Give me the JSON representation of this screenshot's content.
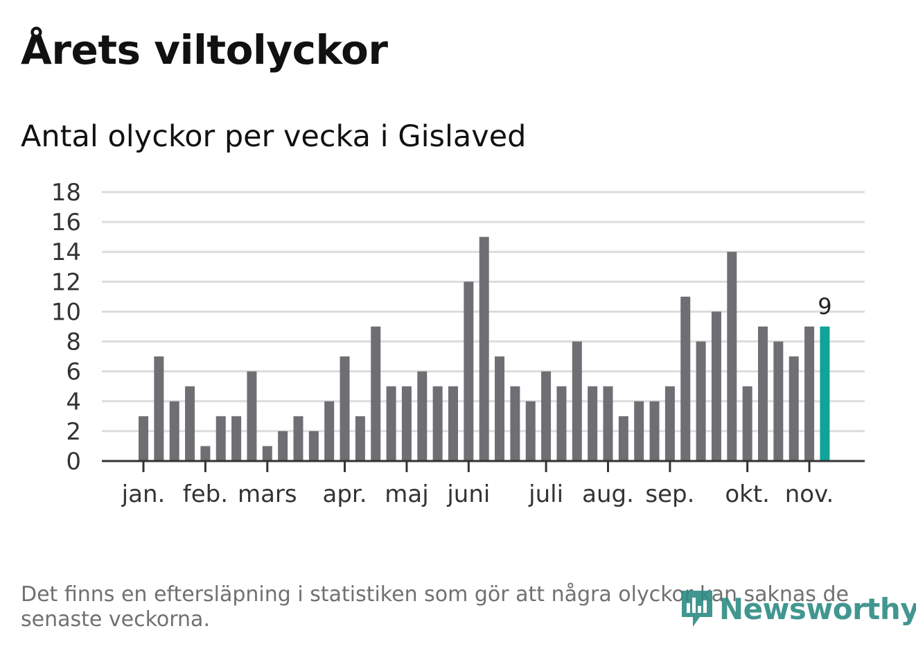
{
  "title": "Årets viltolyckor",
  "subtitle": "Antal olyckor per vecka i Gislaved",
  "footnote": "Det finns en eftersläpning i statistiken som gör att några olyckor kan saknas de senaste veckorna.",
  "logo": {
    "name": "Newsworthy"
  },
  "colors": {
    "bar": "#6f6e73",
    "highlight": "#0fa39a",
    "grid": "#dcdcdc",
    "axis": "#333333"
  },
  "chart_data": {
    "type": "bar",
    "title": "Antal olyckor per vecka i Gislaved",
    "xlabel": "",
    "ylabel": "",
    "ylim": [
      0,
      18
    ],
    "yticks": [
      "0",
      "2",
      "4",
      "6",
      "8",
      "10",
      "12",
      "14",
      "16",
      "18"
    ],
    "month_labels": [
      "jan.",
      "feb.",
      "mars",
      "apr.",
      "maj",
      "juni",
      "juli",
      "aug.",
      "sep.",
      "okt.",
      "nov."
    ],
    "month_tick_weeks": [
      1,
      5,
      9,
      14,
      18,
      22,
      27,
      31,
      35,
      40,
      44
    ],
    "weeks": [
      1,
      2,
      3,
      4,
      5,
      6,
      7,
      8,
      9,
      10,
      11,
      12,
      13,
      14,
      15,
      16,
      17,
      18,
      19,
      20,
      21,
      22,
      23,
      24,
      25,
      26,
      27,
      28,
      29,
      30,
      31,
      32,
      33,
      34,
      35,
      36,
      37,
      38,
      39,
      40,
      41,
      42,
      43,
      44,
      45
    ],
    "values": [
      3,
      7,
      4,
      5,
      1,
      3,
      3,
      6,
      1,
      2,
      3,
      2,
      4,
      7,
      3,
      9,
      5,
      5,
      6,
      5,
      5,
      12,
      15,
      7,
      5,
      4,
      6,
      5,
      8,
      5,
      5,
      3,
      4,
      4,
      5,
      11,
      8,
      10,
      14,
      5,
      9,
      8,
      7,
      9,
      9
    ],
    "highlight_index": 44,
    "highlight_label": "9"
  }
}
